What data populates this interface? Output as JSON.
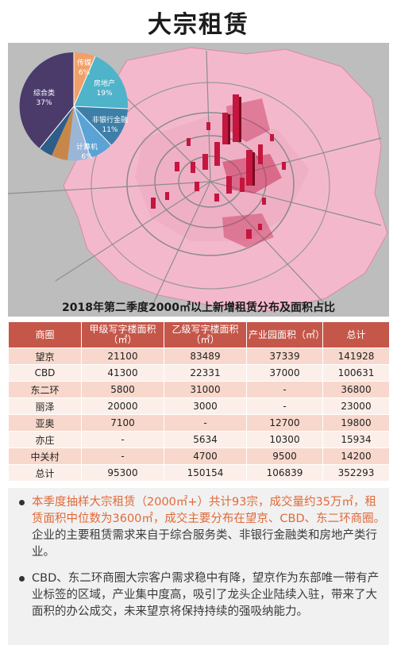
{
  "title": "大宗租赁",
  "map": {
    "caption": "2018年第二季度2000㎡以上新增租赁分布及面积占比",
    "pie": [
      {
        "label": "综合类",
        "percent": "37%",
        "color": "#4a3b6b"
      },
      {
        "label": "传媒",
        "percent": "6%",
        "color": "#f1a06a"
      },
      {
        "label": "房地产",
        "percent": "19%",
        "color": "#4fb3c9"
      },
      {
        "label": "非银行金融",
        "percent": "11%",
        "color": "#3d7fa8"
      },
      {
        "label": "计算机",
        "percent": "6%",
        "color": "#5aa3d6"
      }
    ]
  },
  "table": {
    "headers": [
      "商圈",
      "甲级写字楼面积（㎡）",
      "乙级写字楼面积（㎡）",
      "产业园面积（㎡）",
      "总计"
    ],
    "rows": [
      [
        "望京",
        "21100",
        "83489",
        "37339",
        "141928"
      ],
      [
        "CBD",
        "41300",
        "22331",
        "37000",
        "100631"
      ],
      [
        "东二环",
        "5800",
        "31000",
        "-",
        "36800"
      ],
      [
        "丽泽",
        "20000",
        "3000",
        "-",
        "23000"
      ],
      [
        "亚奥",
        "7100",
        "-",
        "12700",
        "19800"
      ],
      [
        "亦庄",
        "-",
        "5634",
        "10300",
        "15934"
      ],
      [
        "中关村",
        "-",
        "4700",
        "9500",
        "14200"
      ],
      [
        "总计",
        "95300",
        "150154",
        "106839",
        "352293"
      ]
    ]
  },
  "notes": {
    "n1_hl": "本季度抽样大宗租赁（2000㎡+）共计93宗，成交量约35万㎡，租赁面积中位数为3600㎡，成交主要分布在望京、CBD、东二环商圈。",
    "n1_rest": "企业的主要租赁需求来自于综合服务类、非银行金融类和房地产类行业。",
    "n2": "CBD、东二环商圈大宗客户需求稳中有降，望京作为东部唯一带有产业标签的区域，产业集中度高，吸引了龙头企业陆续入驻，带来了大面积的办公成交，未来望京将保持持续的强吸纳能力。"
  }
}
